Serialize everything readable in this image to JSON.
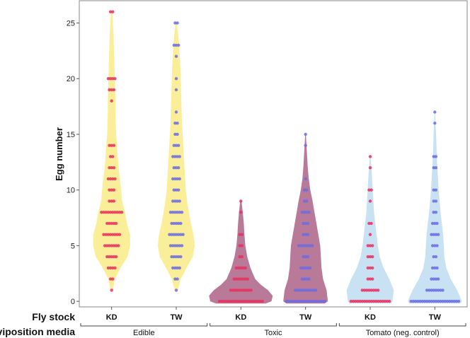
{
  "chart_data": {
    "type": "violin",
    "ylabel": "Egg number",
    "ylim": [
      -0.5,
      27
    ],
    "yticks": [
      0,
      5,
      10,
      15,
      20,
      25
    ],
    "grid": false,
    "row_labels": {
      "fly_stock": "Fly stock",
      "oviposition_media": "oviposition media"
    },
    "groups": [
      {
        "name": "Edible",
        "categories": [
          "KD",
          "TW"
        ]
      },
      {
        "name": "Toxic",
        "categories": [
          "KD",
          "TW"
        ]
      },
      {
        "name": "Tomato (neg. control)",
        "categories": [
          "KD",
          "TW"
        ]
      }
    ],
    "fly_stock_colors": {
      "KD": "#e8305f",
      "TW": "#6b6ce0"
    },
    "series": [
      {
        "group": "Edible",
        "fly_stock": "KD",
        "fill": "#fbec8e",
        "points": [
          [
            26,
            2
          ],
          [
            20,
            4
          ],
          [
            19,
            3
          ],
          [
            18,
            1
          ],
          [
            14,
            3
          ],
          [
            13,
            2
          ],
          [
            12,
            3
          ],
          [
            11,
            4
          ],
          [
            10,
            3
          ],
          [
            9,
            3
          ],
          [
            8,
            10
          ],
          [
            7,
            5
          ],
          [
            6,
            8
          ],
          [
            5,
            7
          ],
          [
            4,
            5
          ],
          [
            3,
            4
          ],
          [
            2,
            2
          ],
          [
            1,
            1
          ]
        ],
        "density": [
          [
            1,
            0.04
          ],
          [
            2,
            0.1
          ],
          [
            3,
            0.28
          ],
          [
            4,
            0.5
          ],
          [
            5,
            0.58
          ],
          [
            6,
            0.58
          ],
          [
            7,
            0.48
          ],
          [
            8,
            0.42
          ],
          [
            9,
            0.33
          ],
          [
            10,
            0.3
          ],
          [
            11,
            0.26
          ],
          [
            12,
            0.22
          ],
          [
            13,
            0.19
          ],
          [
            14,
            0.17
          ],
          [
            15,
            0.14
          ],
          [
            16,
            0.13
          ],
          [
            17,
            0.12
          ],
          [
            18,
            0.12
          ],
          [
            19,
            0.11
          ],
          [
            20,
            0.1
          ],
          [
            21,
            0.09
          ],
          [
            22,
            0.08
          ],
          [
            23,
            0.07
          ],
          [
            24,
            0.06
          ],
          [
            25,
            0.04
          ],
          [
            26,
            0.02
          ]
        ]
      },
      {
        "group": "Edible",
        "fly_stock": "TW",
        "fill": "#fbec8e",
        "points": [
          [
            25,
            2
          ],
          [
            23,
            3
          ],
          [
            22,
            1
          ],
          [
            20,
            1
          ],
          [
            19,
            1
          ],
          [
            17,
            1
          ],
          [
            16,
            2
          ],
          [
            15,
            2
          ],
          [
            14,
            3
          ],
          [
            13,
            4
          ],
          [
            12,
            3
          ],
          [
            11,
            4
          ],
          [
            10,
            3
          ],
          [
            9,
            4
          ],
          [
            8,
            6
          ],
          [
            7,
            5
          ],
          [
            6,
            7
          ],
          [
            5,
            6
          ],
          [
            4,
            5
          ],
          [
            3,
            4
          ],
          [
            2,
            2
          ],
          [
            1,
            1
          ]
        ],
        "density": [
          [
            1,
            0.05
          ],
          [
            2,
            0.14
          ],
          [
            3,
            0.32
          ],
          [
            4,
            0.52
          ],
          [
            5,
            0.58
          ],
          [
            6,
            0.54
          ],
          [
            7,
            0.46
          ],
          [
            8,
            0.4
          ],
          [
            9,
            0.34
          ],
          [
            10,
            0.3
          ],
          [
            11,
            0.28
          ],
          [
            12,
            0.26
          ],
          [
            13,
            0.24
          ],
          [
            14,
            0.22
          ],
          [
            15,
            0.2
          ],
          [
            16,
            0.18
          ],
          [
            17,
            0.17
          ],
          [
            18,
            0.16
          ],
          [
            19,
            0.15
          ],
          [
            20,
            0.14
          ],
          [
            21,
            0.13
          ],
          [
            22,
            0.11
          ],
          [
            23,
            0.09
          ],
          [
            24,
            0.06
          ],
          [
            25,
            0.02
          ]
        ]
      },
      {
        "group": "Toxic",
        "fly_stock": "KD",
        "fill": "#b16a8d",
        "points": [
          [
            9,
            1
          ],
          [
            8,
            1
          ],
          [
            6,
            2
          ],
          [
            5,
            2
          ],
          [
            4,
            2
          ],
          [
            3,
            5
          ],
          [
            2,
            7
          ],
          [
            1,
            10
          ],
          [
            0,
            20
          ]
        ],
        "density": [
          [
            -0.2,
            0.78
          ],
          [
            0,
            0.96
          ],
          [
            0.5,
            1.0
          ],
          [
            1,
            0.85
          ],
          [
            1.5,
            0.62
          ],
          [
            2,
            0.45
          ],
          [
            3,
            0.3
          ],
          [
            4,
            0.2
          ],
          [
            5,
            0.14
          ],
          [
            6,
            0.11
          ],
          [
            7,
            0.09
          ],
          [
            8,
            0.06
          ],
          [
            9,
            0.02
          ]
        ]
      },
      {
        "group": "Toxic",
        "fly_stock": "TW",
        "fill": "#b16a8d",
        "points": [
          [
            15,
            1
          ],
          [
            14,
            1
          ],
          [
            11,
            1
          ],
          [
            10,
            2
          ],
          [
            9,
            2
          ],
          [
            8,
            4
          ],
          [
            7,
            3
          ],
          [
            6,
            3
          ],
          [
            5,
            7
          ],
          [
            4,
            3
          ],
          [
            3,
            5
          ],
          [
            2,
            4
          ],
          [
            1,
            10
          ],
          [
            0,
            18
          ]
        ],
        "density": [
          [
            -0.2,
            0.6
          ],
          [
            0,
            0.7
          ],
          [
            1,
            0.66
          ],
          [
            2,
            0.55
          ],
          [
            3,
            0.5
          ],
          [
            4,
            0.48
          ],
          [
            5,
            0.46
          ],
          [
            6,
            0.4
          ],
          [
            7,
            0.34
          ],
          [
            8,
            0.28
          ],
          [
            9,
            0.22
          ],
          [
            10,
            0.15
          ],
          [
            11,
            0.1
          ],
          [
            12,
            0.07
          ],
          [
            13,
            0.05
          ],
          [
            14,
            0.03
          ],
          [
            15,
            0.01
          ]
        ]
      },
      {
        "group": "Tomato (neg. control)",
        "fly_stock": "KD",
        "fill": "#c2def2",
        "points": [
          [
            13,
            1
          ],
          [
            12,
            1
          ],
          [
            10,
            2
          ],
          [
            9,
            1
          ],
          [
            7,
            2
          ],
          [
            6,
            1
          ],
          [
            5,
            3
          ],
          [
            4,
            3
          ],
          [
            3,
            3
          ],
          [
            2,
            3
          ],
          [
            1,
            8
          ],
          [
            0,
            18
          ]
        ],
        "density": [
          [
            -0.2,
            0.66
          ],
          [
            0,
            0.7
          ],
          [
            1,
            0.74
          ],
          [
            2,
            0.6
          ],
          [
            3,
            0.42
          ],
          [
            4,
            0.3
          ],
          [
            5,
            0.24
          ],
          [
            6,
            0.2
          ],
          [
            7,
            0.16
          ],
          [
            8,
            0.12
          ],
          [
            9,
            0.1
          ],
          [
            10,
            0.08
          ],
          [
            11,
            0.06
          ],
          [
            12,
            0.04
          ],
          [
            13,
            0.01
          ]
        ]
      },
      {
        "group": "Tomato (neg. control)",
        "fly_stock": "TW",
        "fill": "#c2def2",
        "points": [
          [
            17,
            1
          ],
          [
            16,
            1
          ],
          [
            13,
            2
          ],
          [
            12,
            2
          ],
          [
            10,
            2
          ],
          [
            9,
            2
          ],
          [
            8,
            2
          ],
          [
            7,
            3
          ],
          [
            6,
            4
          ],
          [
            5,
            3
          ],
          [
            4,
            2
          ],
          [
            3,
            3
          ],
          [
            2,
            4
          ],
          [
            1,
            8
          ],
          [
            0,
            22
          ]
        ],
        "density": [
          [
            -0.2,
            0.8
          ],
          [
            0,
            0.85
          ],
          [
            1,
            0.7
          ],
          [
            2,
            0.5
          ],
          [
            3,
            0.36
          ],
          [
            4,
            0.3
          ],
          [
            5,
            0.28
          ],
          [
            6,
            0.26
          ],
          [
            7,
            0.22
          ],
          [
            8,
            0.18
          ],
          [
            9,
            0.15
          ],
          [
            10,
            0.12
          ],
          [
            11,
            0.1
          ],
          [
            12,
            0.08
          ],
          [
            13,
            0.06
          ],
          [
            14,
            0.05
          ],
          [
            15,
            0.04
          ],
          [
            16,
            0.02
          ],
          [
            17,
            0.01
          ]
        ]
      }
    ]
  }
}
